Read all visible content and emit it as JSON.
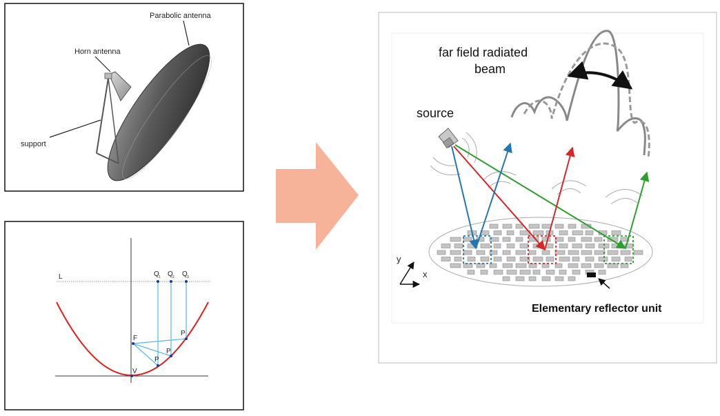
{
  "antenna_panel": {
    "labels": {
      "parabolic": "Parabolic antenna",
      "horn": "Horn antenna",
      "support": "support"
    }
  },
  "parabola_panel": {
    "labels": {
      "line_l": "L",
      "focus": "F",
      "vertex": "V",
      "q1": "Q",
      "q2": "Q",
      "q3": "Q",
      "q1_sub": "1",
      "q2_sub": "2",
      "q3_sub": "3",
      "p_low": "P",
      "p_mid": "P",
      "p_high": "P"
    },
    "colors": {
      "curve": "#e0201c",
      "rays": "#4fb9e8",
      "points": "#1a3a9a"
    }
  },
  "arrow": {
    "color": "#f6b39a"
  },
  "reflectarray_panel": {
    "labels": {
      "beam_title_line1": "far field radiated",
      "beam_title_line2": "beam",
      "source": "source",
      "axis_y": "y",
      "axis_x": "x",
      "unit": "Elementary reflector unit"
    },
    "colors": {
      "blue": "#1f77b4",
      "red": "#d62728",
      "green": "#2ca02c",
      "element": "#c4c4c4"
    }
  }
}
